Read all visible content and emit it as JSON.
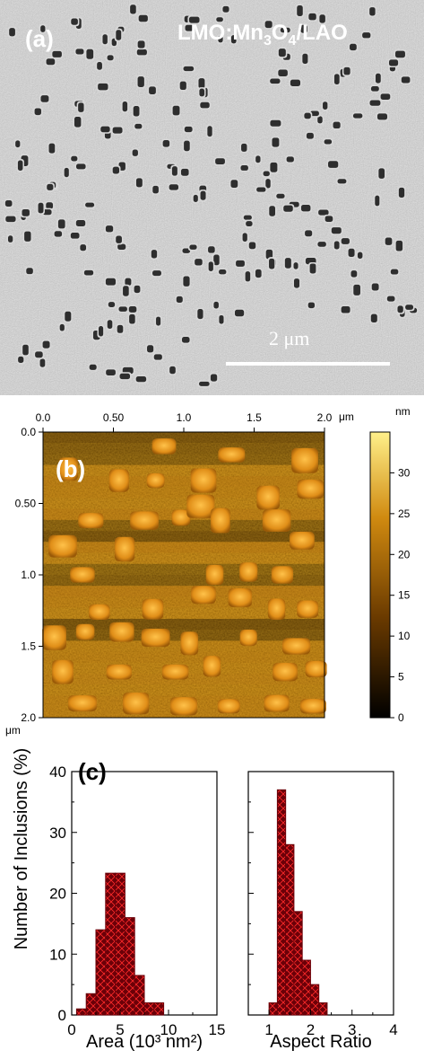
{
  "panel_a": {
    "label": "(a)",
    "title_main": "LMO:Mn",
    "title_sub1": "3",
    "title_o": "O",
    "title_sub2": "4",
    "title_tail": "/LAO",
    "scale_bar_label": "2 μm"
  },
  "panel_b": {
    "label": "(b)",
    "x_unit": "μm",
    "y_unit": "μm",
    "colorbar_unit": "nm",
    "x_ticks": [
      "0.0",
      "0.50",
      "1.0",
      "1.5",
      "2.0"
    ],
    "y_ticks": [
      "0.0",
      "0.50",
      "1.0",
      "1.5",
      "2.0"
    ],
    "colorbar_ticks": [
      "0",
      "5",
      "10",
      "15",
      "20",
      "25",
      "30"
    ],
    "colors": {
      "low": "#000000",
      "mid": "#9a5a00",
      "high": "#ffe060"
    }
  },
  "chart_data": [
    {
      "type": "bar",
      "panel_label": "(c)",
      "xlabel": "Area (10³ nm²)",
      "ylabel": "Number of Inclusions (%)",
      "xlim": [
        0,
        15
      ],
      "ylim": [
        0,
        40
      ],
      "x_ticks": [
        0,
        5,
        10,
        15
      ],
      "y_ticks": [
        0,
        10,
        20,
        30,
        40
      ],
      "bin_width": 1,
      "x": [
        1,
        2,
        3,
        4,
        5,
        6,
        7,
        8,
        9
      ],
      "values": [
        1,
        3.5,
        14,
        23.3,
        23.3,
        16,
        6.5,
        2,
        2
      ],
      "bar_color": "#6b0008",
      "hatch_color": "#ff2a2a"
    },
    {
      "type": "bar",
      "xlabel": "Aspect Ratio",
      "ylabel": "",
      "xlim": [
        0.5,
        4
      ],
      "ylim": [
        0,
        40
      ],
      "x_ticks": [
        1,
        2,
        3,
        4
      ],
      "bin_width": 0.2,
      "x": [
        1.1,
        1.3,
        1.5,
        1.7,
        1.9,
        2.1,
        2.3
      ],
      "values": [
        2,
        37,
        28,
        17,
        9,
        5,
        2
      ],
      "bar_color": "#6b0008",
      "hatch_color": "#ff2a2a"
    }
  ]
}
